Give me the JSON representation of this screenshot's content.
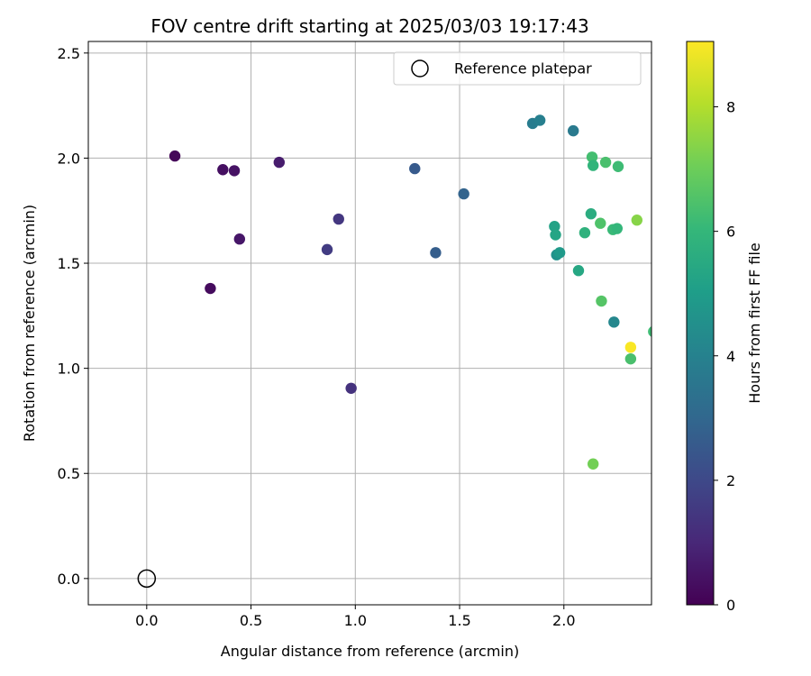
{
  "chart_data": {
    "type": "scatter",
    "title": "FOV centre drift starting at 2025/03/03 19:17:43",
    "xlabel": "Angular distance from reference (arcmin)",
    "ylabel": "Rotation from reference (arcmin)",
    "xlim": [
      -0.28,
      2.42
    ],
    "ylim": [
      -0.125,
      2.555
    ],
    "xticks": [
      0.0,
      0.5,
      1.0,
      1.5,
      2.0
    ],
    "xtick_labels": [
      "0.0",
      "0.5",
      "1.0",
      "1.5",
      "2.0"
    ],
    "yticks": [
      0.0,
      0.5,
      1.0,
      1.5,
      2.0,
      2.5
    ],
    "ytick_labels": [
      "0.0",
      "0.5",
      "1.0",
      "1.5",
      "2.0",
      "2.5"
    ],
    "grid": true,
    "legend": {
      "location": "upper right",
      "entries": [
        "Reference platepar"
      ]
    },
    "reference_point": {
      "x": 0.0,
      "y": 0.0,
      "label": "Reference platepar"
    },
    "colorbar": {
      "label": "Hours from first FF file",
      "colormap": "viridis",
      "range": [
        0,
        9.05
      ],
      "ticks": [
        0,
        2,
        4,
        6,
        8
      ],
      "tick_labels": [
        "0",
        "2",
        "4",
        "6",
        "8"
      ]
    },
    "points": [
      {
        "x": 0.135,
        "y": 2.01,
        "c": 0.15
      },
      {
        "x": 0.305,
        "y": 1.38,
        "c": 0.25
      },
      {
        "x": 0.365,
        "y": 1.945,
        "c": 0.35
      },
      {
        "x": 0.42,
        "y": 1.94,
        "c": 0.45
      },
      {
        "x": 0.445,
        "y": 1.615,
        "c": 0.55
      },
      {
        "x": 0.635,
        "y": 1.98,
        "c": 0.7
      },
      {
        "x": 0.865,
        "y": 1.565,
        "c": 1.6
      },
      {
        "x": 0.92,
        "y": 1.71,
        "c": 1.45
      },
      {
        "x": 0.98,
        "y": 0.905,
        "c": 1.3
      },
      {
        "x": 1.285,
        "y": 1.95,
        "c": 2.55
      },
      {
        "x": 1.385,
        "y": 1.55,
        "c": 2.7
      },
      {
        "x": 1.52,
        "y": 1.83,
        "c": 2.9
      },
      {
        "x": 1.85,
        "y": 2.165,
        "c": 3.8
      },
      {
        "x": 1.885,
        "y": 2.18,
        "c": 3.9
      },
      {
        "x": 2.045,
        "y": 2.13,
        "c": 3.7
      },
      {
        "x": 1.955,
        "y": 1.675,
        "c": 5.2
      },
      {
        "x": 1.96,
        "y": 1.635,
        "c": 5.3
      },
      {
        "x": 1.965,
        "y": 1.54,
        "c": 4.6
      },
      {
        "x": 1.98,
        "y": 1.55,
        "c": 4.9
      },
      {
        "x": 2.07,
        "y": 1.465,
        "c": 5.4
      },
      {
        "x": 2.1,
        "y": 1.645,
        "c": 5.8
      },
      {
        "x": 2.13,
        "y": 1.735,
        "c": 5.6
      },
      {
        "x": 2.135,
        "y": 2.005,
        "c": 6.3
      },
      {
        "x": 2.14,
        "y": 1.965,
        "c": 5.9
      },
      {
        "x": 2.175,
        "y": 1.69,
        "c": 6.5
      },
      {
        "x": 2.18,
        "y": 1.32,
        "c": 6.6
      },
      {
        "x": 2.2,
        "y": 1.98,
        "c": 6.4
      },
      {
        "x": 2.235,
        "y": 1.66,
        "c": 6.1
      },
      {
        "x": 2.24,
        "y": 1.22,
        "c": 4.2
      },
      {
        "x": 2.255,
        "y": 1.665,
        "c": 6.0
      },
      {
        "x": 2.26,
        "y": 1.96,
        "c": 6.2
      },
      {
        "x": 2.14,
        "y": 0.545,
        "c": 7.1
      },
      {
        "x": 2.32,
        "y": 1.045,
        "c": 6.4
      },
      {
        "x": 2.32,
        "y": 1.1,
        "c": 9.0
      },
      {
        "x": 2.35,
        "y": 1.705,
        "c": 7.4
      },
      {
        "x": 2.43,
        "y": 1.175,
        "c": 6.2
      }
    ]
  }
}
